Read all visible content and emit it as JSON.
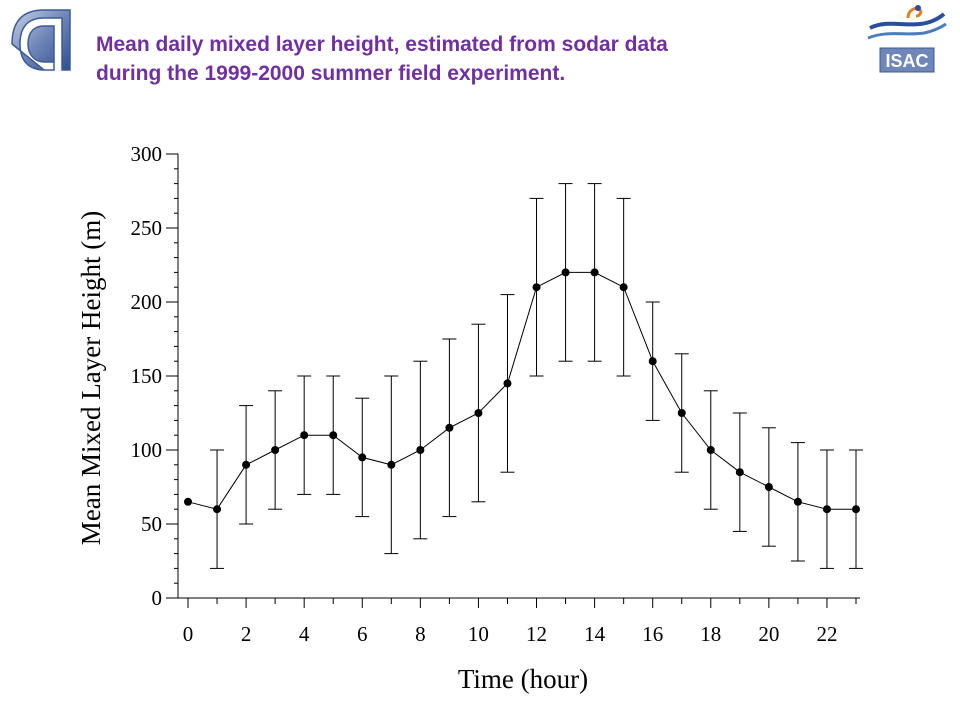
{
  "header": {
    "title_line1": "Mean daily mixed layer height, estimated from sodar data",
    "title_line2": "during the 1999-2000 summer  field experiment.",
    "logo_left": "cnr-logo",
    "logo_right_text": "ISAC",
    "title_color": "#7030a0"
  },
  "chart_data": {
    "type": "line",
    "xlabel": "Time (hour)",
    "ylabel": "Mean Mixed Layer Height (m)",
    "xlim": [
      0,
      23
    ],
    "ylim": [
      0,
      300
    ],
    "x_ticks": [
      0,
      2,
      4,
      6,
      8,
      10,
      12,
      14,
      16,
      18,
      20,
      22
    ],
    "y_ticks": [
      0,
      50,
      100,
      150,
      200,
      250,
      300
    ],
    "grid": false,
    "series": [
      {
        "x": [
          0,
          1,
          2,
          3,
          4,
          5,
          6,
          7,
          8,
          9,
          10,
          11,
          12,
          13,
          14,
          15,
          16,
          17,
          18,
          19,
          20,
          21,
          22,
          23
        ],
        "y": [
          65,
          60,
          90,
          100,
          110,
          110,
          95,
          90,
          100,
          115,
          125,
          145,
          210,
          220,
          220,
          210,
          160,
          125,
          100,
          85,
          75,
          65,
          60,
          60
        ],
        "error_low": [
          null,
          20,
          50,
          60,
          70,
          70,
          55,
          30,
          40,
          55,
          65,
          85,
          150,
          160,
          160,
          150,
          120,
          85,
          60,
          45,
          35,
          25,
          20,
          20
        ],
        "error_high": [
          null,
          100,
          130,
          140,
          150,
          150,
          135,
          150,
          160,
          175,
          185,
          205,
          270,
          280,
          280,
          270,
          200,
          165,
          140,
          125,
          115,
          105,
          100,
          100
        ]
      }
    ]
  }
}
